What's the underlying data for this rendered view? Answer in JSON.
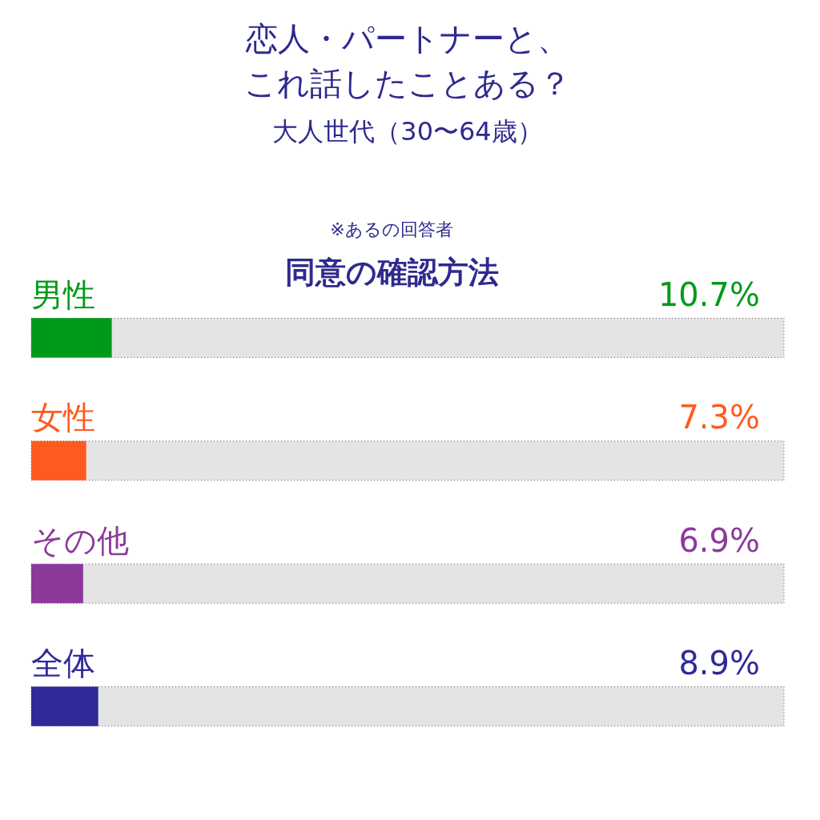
{
  "chart_data": {
    "type": "bar",
    "orientation": "horizontal",
    "title": [
      "恋人・パートナーと、",
      "これ話したことある？"
    ],
    "subtitle": "大人世代（30〜64歳）",
    "annotations": [
      "※あるの回答者",
      "同意の確認方法"
    ],
    "categories": [
      "男性",
      "女性",
      "その他",
      "全体"
    ],
    "values": [
      10.7,
      7.3,
      6.9,
      8.9
    ],
    "colors": [
      "#009a1a",
      "#ff5a1f",
      "#8b3a9a",
      "#2e2a9a"
    ],
    "value_labels": [
      "10.7%",
      "7.3%",
      "6.9%",
      "8.9%"
    ],
    "xlim": [
      0,
      100
    ],
    "tick_labels": false
  }
}
